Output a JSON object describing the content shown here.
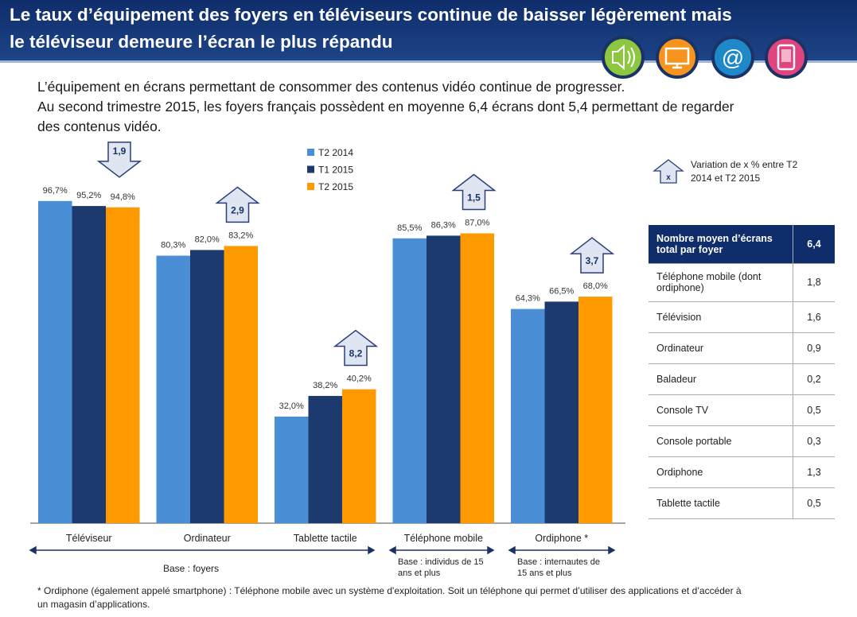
{
  "header": {
    "title_lines": [
      "Le taux d’équipement des foyers en téléviseurs continue de baisser légèrement mais",
      "le téléviseur demeure l’écran le plus répandu"
    ]
  },
  "intro_lines": [
    "L’équipement en écrans permettant de consommer des contenus vidéo continue de progresser.",
    "Au second trimestre 2015, les foyers français possèdent en moyenne 6,4 écrans dont 5,4 permettant de regarder",
    "des contenus vidéo."
  ],
  "chart_data": {
    "type": "bar",
    "categories": [
      "Téléviseur",
      "Ordinateur",
      "Tablette tactile",
      "Téléphone mobile",
      "Ordiphone  *"
    ],
    "series": [
      {
        "name": "T2 2014",
        "color": "#4a8fd6",
        "values": [
          96.7,
          80.3,
          32.0,
          85.5,
          64.3
        ],
        "value_labels": [
          "96,7%",
          "80,3%",
          "32,0%",
          "85,5%",
          "64,3%"
        ]
      },
      {
        "name": "T1 2015",
        "color": "#1d3a6e",
        "values": [
          95.2,
          82.0,
          38.2,
          86.3,
          66.5
        ],
        "value_labels": [
          "95,2%",
          "82,0%",
          "38,2%",
          "86,3%",
          "66,5%"
        ]
      },
      {
        "name": "T2 2015",
        "color": "#ff9900",
        "values": [
          94.8,
          83.2,
          40.2,
          87.0,
          68.0
        ],
        "value_labels": [
          "94,8%",
          "83,2%",
          "40,2%",
          "87,0%",
          "68,0%"
        ]
      }
    ],
    "ylim": [
      0,
      100
    ],
    "variation": {
      "values": [
        -1.9,
        2.9,
        8.2,
        1.5,
        3.7
      ],
      "labels": [
        "1,9",
        "2,9",
        "8,2",
        "1,5",
        "3,7"
      ]
    },
    "variation_legend": {
      "symbol": "x",
      "text": "Variation de x % entre T2 2014 et T2 2015"
    },
    "bases": [
      "Base : foyers",
      "Base : individus de 15 ans et plus",
      "Base : internautes de 15 ans et plus"
    ]
  },
  "table": {
    "header": [
      "Nombre moyen d’écrans total par foyer",
      "6,4"
    ],
    "rows": [
      [
        "Téléphone mobile (dont ordiphone)",
        "1,8"
      ],
      [
        "Télévision",
        "1,6"
      ],
      [
        "Ordinateur",
        "0,9"
      ],
      [
        "Baladeur",
        "0,2"
      ],
      [
        "Console TV",
        "0,5"
      ],
      [
        "Console portable",
        "0,3"
      ],
      [
        "Ordiphone",
        "1,3"
      ],
      [
        "Tablette tactile",
        "0,5"
      ]
    ]
  },
  "footnote_lines": [
    "* Ordiphone (également appelé smartphone) : Téléphone mobile avec un système d'exploitation. Soit un téléphone qui permet d’utiliser des applications et d’accéder à",
    "un magasin d’applications."
  ]
}
